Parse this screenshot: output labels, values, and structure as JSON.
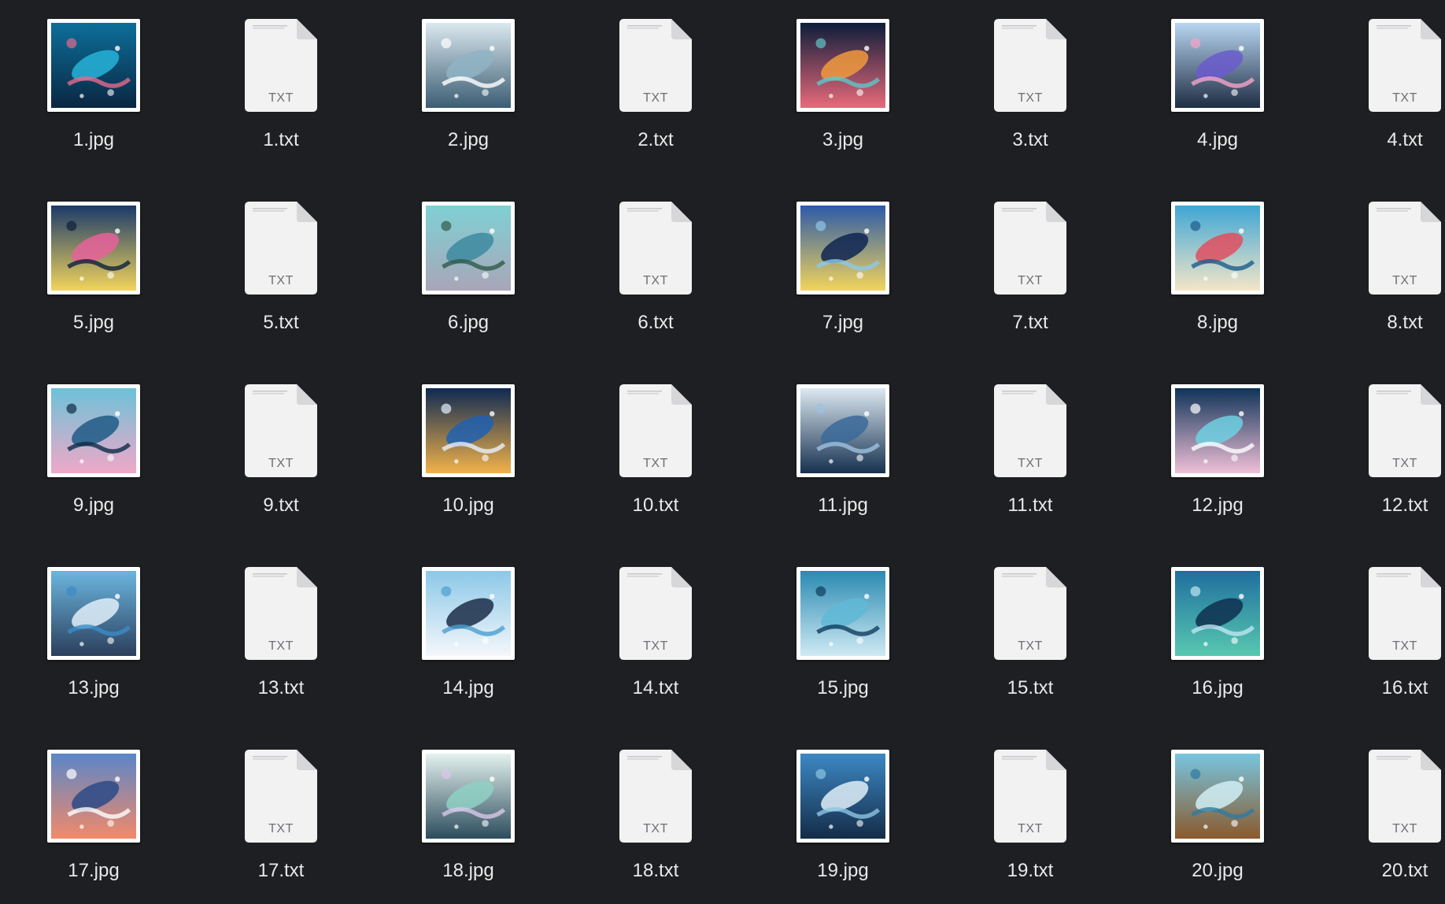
{
  "window": {
    "background": "#1e1f22",
    "view": "icon-grid"
  },
  "file_types": {
    "txt_badge": "TXT",
    "txt_icon": "document-icon",
    "image_icon": "image-thumbnail"
  },
  "files": [
    {
      "name": "1.jpg",
      "type": "image",
      "palette": [
        "#0c6f9a",
        "#27b3d8",
        "#0a2742",
        "#e46a8c"
      ]
    },
    {
      "name": "1.txt",
      "type": "text"
    },
    {
      "name": "2.jpg",
      "type": "image",
      "palette": [
        "#dbe8ef",
        "#8fb4c6",
        "#3b5d73",
        "#ffffff"
      ]
    },
    {
      "name": "2.txt",
      "type": "text"
    },
    {
      "name": "3.jpg",
      "type": "image",
      "palette": [
        "#0d1d3a",
        "#f09a3e",
        "#e86a7a",
        "#5fc6c9"
      ]
    },
    {
      "name": "3.txt",
      "type": "text"
    },
    {
      "name": "4.jpg",
      "type": "image",
      "palette": [
        "#b9d6f2",
        "#6a5acd",
        "#1e2e44",
        "#f5a4c8"
      ]
    },
    {
      "name": "4.txt",
      "type": "text"
    },
    {
      "name": "5.jpg",
      "type": "image",
      "palette": [
        "#1a3a6a",
        "#e6619a",
        "#f2d45c",
        "#0e1f3c"
      ]
    },
    {
      "name": "5.txt",
      "type": "text"
    },
    {
      "name": "6.jpg",
      "type": "image",
      "palette": [
        "#7fd0d4",
        "#3e8aa0",
        "#a8a6b8",
        "#2f5a48"
      ]
    },
    {
      "name": "6.txt",
      "type": "text"
    },
    {
      "name": "7.jpg",
      "type": "image",
      "palette": [
        "#2c5aa8",
        "#0e2451",
        "#f2d45c",
        "#8fc8e8"
      ]
    },
    {
      "name": "7.txt",
      "type": "text"
    },
    {
      "name": "8.jpg",
      "type": "image",
      "palette": [
        "#3fa6d4",
        "#e04f5f",
        "#f4e6c8",
        "#1c5c8c"
      ]
    },
    {
      "name": "8.txt",
      "type": "text"
    },
    {
      "name": "9.jpg",
      "type": "image",
      "palette": [
        "#6cc2d8",
        "#1e5a86",
        "#f0a8c8",
        "#0d2c48"
      ]
    },
    {
      "name": "9.txt",
      "type": "text"
    },
    {
      "name": "10.jpg",
      "type": "image",
      "palette": [
        "#0f2a52",
        "#2060b0",
        "#f2b24a",
        "#e8f0ff"
      ]
    },
    {
      "name": "10.txt",
      "type": "text"
    },
    {
      "name": "11.jpg",
      "type": "image",
      "palette": [
        "#dde9f2",
        "#3b6a9a",
        "#15304f",
        "#9ec2de"
      ]
    },
    {
      "name": "11.txt",
      "type": "text"
    },
    {
      "name": "12.jpg",
      "type": "image",
      "palette": [
        "#0f3358",
        "#6fd0e0",
        "#f0c0d8",
        "#ffffff"
      ]
    },
    {
      "name": "12.txt",
      "type": "text"
    },
    {
      "name": "13.jpg",
      "type": "image",
      "palette": [
        "#6bb6e0",
        "#dfeef8",
        "#2b3f5c",
        "#3a8cc8"
      ]
    },
    {
      "name": "13.txt",
      "type": "text"
    },
    {
      "name": "14.jpg",
      "type": "image",
      "palette": [
        "#8cc8e8",
        "#1b2d47",
        "#f4f7fb",
        "#4a9fd0"
      ]
    },
    {
      "name": "14.txt",
      "type": "text"
    },
    {
      "name": "15.jpg",
      "type": "image",
      "palette": [
        "#2a8ab2",
        "#5fb8d6",
        "#cfeaf4",
        "#0f3d5c"
      ]
    },
    {
      "name": "15.txt",
      "type": "text"
    },
    {
      "name": "16.jpg",
      "type": "image",
      "palette": [
        "#1f6f9e",
        "#0e2f4f",
        "#58c8b0",
        "#bfe6f2"
      ]
    },
    {
      "name": "16.txt",
      "type": "text"
    },
    {
      "name": "17.jpg",
      "type": "image",
      "palette": [
        "#5a86c8",
        "#2c4a86",
        "#f28a6a",
        "#ffffff"
      ]
    },
    {
      "name": "17.txt",
      "type": "text"
    },
    {
      "name": "18.jpg",
      "type": "image",
      "palette": [
        "#e4f2ef",
        "#8fd0c4",
        "#2c4c5c",
        "#d8c8e8"
      ]
    },
    {
      "name": "18.txt",
      "type": "text"
    },
    {
      "name": "19.jpg",
      "type": "image",
      "palette": [
        "#3c88c4",
        "#dfeef8",
        "#142c48",
        "#8cc4e4"
      ]
    },
    {
      "name": "19.txt",
      "type": "text"
    },
    {
      "name": "20.jpg",
      "type": "image",
      "palette": [
        "#78c6e0",
        "#d0eef4",
        "#8a5a2c",
        "#2e7aa0"
      ]
    },
    {
      "name": "20.txt",
      "type": "text"
    }
  ]
}
